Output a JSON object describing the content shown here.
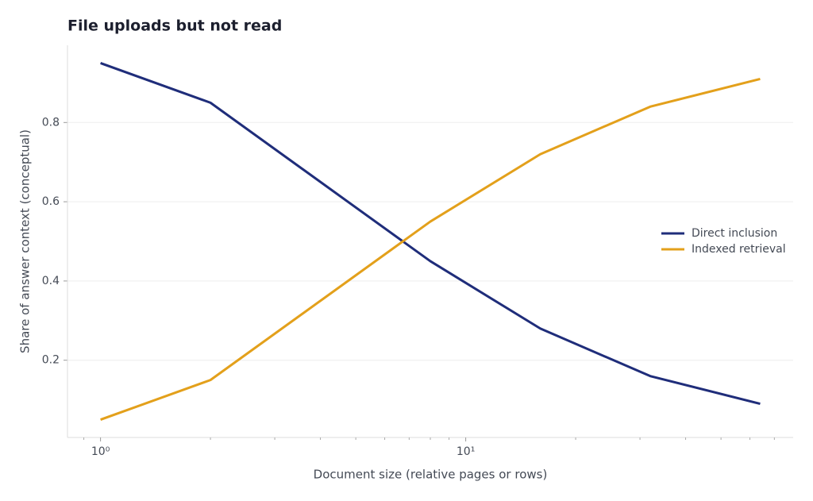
{
  "chart_data": {
    "type": "line",
    "title": "File uploads but not read",
    "x_label": "Document size (relative pages or rows)",
    "y_label": "Share of answer context (conceptual)",
    "x": [
      1,
      2,
      4,
      8,
      16,
      32,
      64
    ],
    "series": [
      {
        "name": "Direct inclusion",
        "color": "#1f2d7a",
        "values": [
          0.95,
          0.85,
          0.65,
          0.45,
          0.28,
          0.16,
          0.09
        ]
      },
      {
        "name": "Indexed retrieval",
        "color": "#e3a01b",
        "values": [
          0.05,
          0.15,
          0.35,
          0.55,
          0.72,
          0.84,
          0.91
        ]
      }
    ],
    "xscale": "log",
    "xlim": [
      0.812,
      78.8
    ],
    "xticks": [
      {
        "value": 1,
        "label": "10⁰"
      },
      {
        "value": 10,
        "label": "10¹"
      }
    ],
    "xminorticks": [
      0.9,
      2,
      3,
      4,
      5,
      6,
      7,
      8,
      9,
      20,
      30,
      40,
      50,
      60,
      70
    ],
    "ylim": [
      0.005,
      0.995
    ],
    "yticks": [
      0.2,
      0.4,
      0.6,
      0.8
    ],
    "grid": true,
    "legend": "right"
  }
}
